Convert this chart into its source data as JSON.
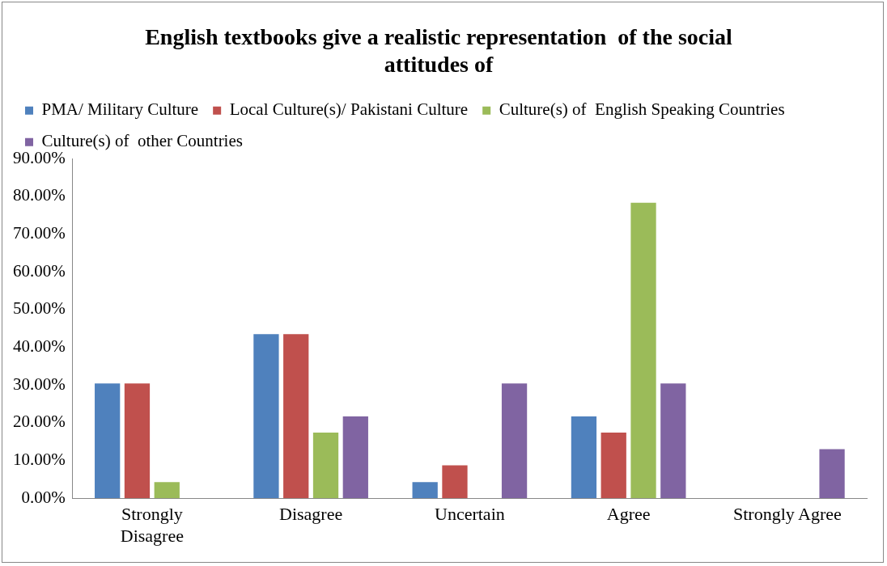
{
  "chart_data": {
    "type": "bar",
    "title": "English textbooks give a realistic representation  of the social attitudes of",
    "categories": [
      "Strongly Disagree",
      "Disagree",
      "Uncertain",
      "Agree",
      "Strongly Agree"
    ],
    "series": [
      {
        "name": "PMA/ Military Culture",
        "color": "#4f81bd",
        "values": [
          30.4,
          43.5,
          4.3,
          21.7,
          0
        ]
      },
      {
        "name": "Local Culture(s)/ Pakistani Culture",
        "color": "#c0504d",
        "values": [
          30.4,
          43.5,
          8.7,
          17.4,
          0
        ]
      },
      {
        "name": "Culture(s) of  English Speaking Countries",
        "color": "#9bbb59",
        "values": [
          4.3,
          17.4,
          0,
          78.3,
          0
        ]
      },
      {
        "name": "Culture(s) of  other Countries",
        "color": "#8064a2",
        "values": [
          0,
          21.7,
          30.4,
          30.4,
          13.0
        ]
      }
    ],
    "ylim": [
      0,
      90
    ],
    "yticks": [
      {
        "value": 0,
        "label": "0.00%"
      },
      {
        "value": 10,
        "label": "10.00%"
      },
      {
        "value": 20,
        "label": "20.00%"
      },
      {
        "value": 30,
        "label": "30.00%"
      },
      {
        "value": 40,
        "label": "40.00%"
      },
      {
        "value": 50,
        "label": "50.00%"
      },
      {
        "value": 60,
        "label": "60.00%"
      },
      {
        "value": 70,
        "label": "70.00%"
      },
      {
        "value": 80,
        "label": "80.00%"
      },
      {
        "value": 90,
        "label": "90.00%"
      }
    ],
    "grid": false,
    "legend": "top"
  }
}
